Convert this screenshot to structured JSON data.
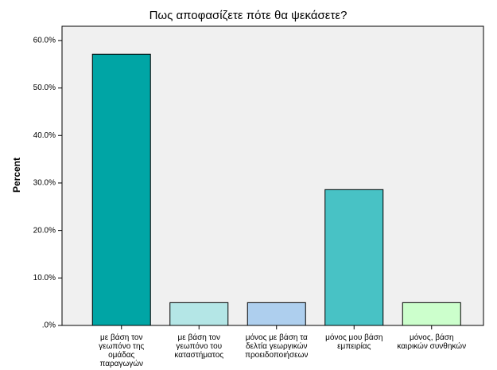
{
  "chart_data": {
    "type": "bar",
    "title": "Πως αποφασίζετε πότε θα ψεκάσετε?",
    "y_label": "Percent",
    "categories": [
      [
        "με βάση τον",
        "γεωπόνο της",
        "ομάδας",
        "παραγωγών"
      ],
      [
        "με βάση τον",
        "γεωπόνο του",
        "καταστήματος"
      ],
      [
        "μόνος με βάση τα",
        "δελτία γεωργικών",
        "προειδοποιήσεων"
      ],
      [
        "μόνος μου βάση",
        "εμπειρίας"
      ],
      [
        "μόνος, βάση",
        "καιρικών συνθηκών"
      ]
    ],
    "values": [
      57.1,
      4.8,
      4.8,
      28.6,
      4.8
    ],
    "colors": [
      "#00a5a5",
      "#b4e6e6",
      "#aecfee",
      "#48c2c5",
      "#ccffcc"
    ],
    "ylim": [
      0,
      63
    ],
    "yticks": [
      {
        "value": 0,
        "label": ".0%"
      },
      {
        "value": 10,
        "label": "10.0%"
      },
      {
        "value": 20,
        "label": "20.0%"
      },
      {
        "value": 30,
        "label": "30.0%"
      },
      {
        "value": 40,
        "label": "40.0%"
      },
      {
        "value": 50,
        "label": "50.0%"
      },
      {
        "value": 60,
        "label": "60.0%"
      }
    ]
  }
}
